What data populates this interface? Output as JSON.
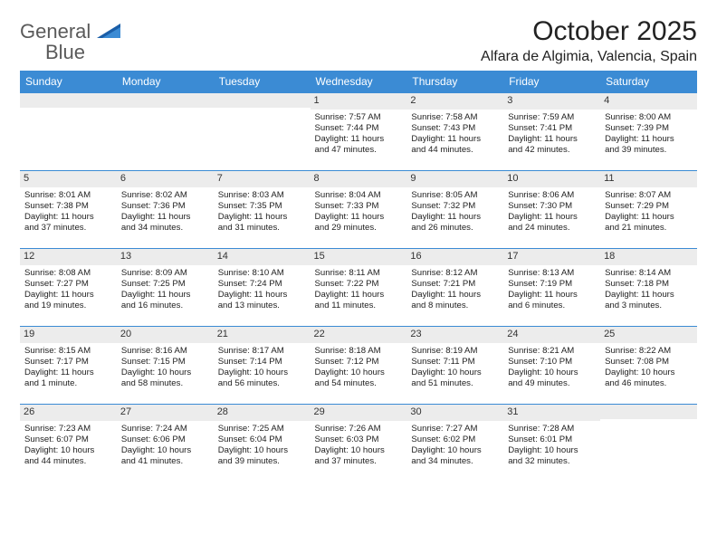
{
  "logo": {
    "word1": "General",
    "word2": "Blue"
  },
  "title": "October 2025",
  "subtitle": "Alfara de Algimia, Valencia, Spain",
  "columns": [
    "Sunday",
    "Monday",
    "Tuesday",
    "Wednesday",
    "Thursday",
    "Friday",
    "Saturday"
  ],
  "colors": {
    "header_bg": "#3b8bd4",
    "header_text": "#ffffff",
    "daynum_bg": "#ececec",
    "row_border": "#3b8bd4",
    "text": "#222222",
    "logo_gray": "#5a5a5a",
    "logo_blue": "#3b8bd4"
  },
  "weeks": [
    [
      null,
      null,
      null,
      {
        "n": "1",
        "sr": "7:57 AM",
        "ss": "7:44 PM",
        "dl": "11 hours and 47 minutes."
      },
      {
        "n": "2",
        "sr": "7:58 AM",
        "ss": "7:43 PM",
        "dl": "11 hours and 44 minutes."
      },
      {
        "n": "3",
        "sr": "7:59 AM",
        "ss": "7:41 PM",
        "dl": "11 hours and 42 minutes."
      },
      {
        "n": "4",
        "sr": "8:00 AM",
        "ss": "7:39 PM",
        "dl": "11 hours and 39 minutes."
      }
    ],
    [
      {
        "n": "5",
        "sr": "8:01 AM",
        "ss": "7:38 PM",
        "dl": "11 hours and 37 minutes."
      },
      {
        "n": "6",
        "sr": "8:02 AM",
        "ss": "7:36 PM",
        "dl": "11 hours and 34 minutes."
      },
      {
        "n": "7",
        "sr": "8:03 AM",
        "ss": "7:35 PM",
        "dl": "11 hours and 31 minutes."
      },
      {
        "n": "8",
        "sr": "8:04 AM",
        "ss": "7:33 PM",
        "dl": "11 hours and 29 minutes."
      },
      {
        "n": "9",
        "sr": "8:05 AM",
        "ss": "7:32 PM",
        "dl": "11 hours and 26 minutes."
      },
      {
        "n": "10",
        "sr": "8:06 AM",
        "ss": "7:30 PM",
        "dl": "11 hours and 24 minutes."
      },
      {
        "n": "11",
        "sr": "8:07 AM",
        "ss": "7:29 PM",
        "dl": "11 hours and 21 minutes."
      }
    ],
    [
      {
        "n": "12",
        "sr": "8:08 AM",
        "ss": "7:27 PM",
        "dl": "11 hours and 19 minutes."
      },
      {
        "n": "13",
        "sr": "8:09 AM",
        "ss": "7:25 PM",
        "dl": "11 hours and 16 minutes."
      },
      {
        "n": "14",
        "sr": "8:10 AM",
        "ss": "7:24 PM",
        "dl": "11 hours and 13 minutes."
      },
      {
        "n": "15",
        "sr": "8:11 AM",
        "ss": "7:22 PM",
        "dl": "11 hours and 11 minutes."
      },
      {
        "n": "16",
        "sr": "8:12 AM",
        "ss": "7:21 PM",
        "dl": "11 hours and 8 minutes."
      },
      {
        "n": "17",
        "sr": "8:13 AM",
        "ss": "7:19 PM",
        "dl": "11 hours and 6 minutes."
      },
      {
        "n": "18",
        "sr": "8:14 AM",
        "ss": "7:18 PM",
        "dl": "11 hours and 3 minutes."
      }
    ],
    [
      {
        "n": "19",
        "sr": "8:15 AM",
        "ss": "7:17 PM",
        "dl": "11 hours and 1 minute."
      },
      {
        "n": "20",
        "sr": "8:16 AM",
        "ss": "7:15 PM",
        "dl": "10 hours and 58 minutes."
      },
      {
        "n": "21",
        "sr": "8:17 AM",
        "ss": "7:14 PM",
        "dl": "10 hours and 56 minutes."
      },
      {
        "n": "22",
        "sr": "8:18 AM",
        "ss": "7:12 PM",
        "dl": "10 hours and 54 minutes."
      },
      {
        "n": "23",
        "sr": "8:19 AM",
        "ss": "7:11 PM",
        "dl": "10 hours and 51 minutes."
      },
      {
        "n": "24",
        "sr": "8:21 AM",
        "ss": "7:10 PM",
        "dl": "10 hours and 49 minutes."
      },
      {
        "n": "25",
        "sr": "8:22 AM",
        "ss": "7:08 PM",
        "dl": "10 hours and 46 minutes."
      }
    ],
    [
      {
        "n": "26",
        "sr": "7:23 AM",
        "ss": "6:07 PM",
        "dl": "10 hours and 44 minutes."
      },
      {
        "n": "27",
        "sr": "7:24 AM",
        "ss": "6:06 PM",
        "dl": "10 hours and 41 minutes."
      },
      {
        "n": "28",
        "sr": "7:25 AM",
        "ss": "6:04 PM",
        "dl": "10 hours and 39 minutes."
      },
      {
        "n": "29",
        "sr": "7:26 AM",
        "ss": "6:03 PM",
        "dl": "10 hours and 37 minutes."
      },
      {
        "n": "30",
        "sr": "7:27 AM",
        "ss": "6:02 PM",
        "dl": "10 hours and 34 minutes."
      },
      {
        "n": "31",
        "sr": "7:28 AM",
        "ss": "6:01 PM",
        "dl": "10 hours and 32 minutes."
      },
      null
    ]
  ],
  "labels": {
    "sunrise": "Sunrise: ",
    "sunset": "Sunset: ",
    "daylight": "Daylight: "
  }
}
